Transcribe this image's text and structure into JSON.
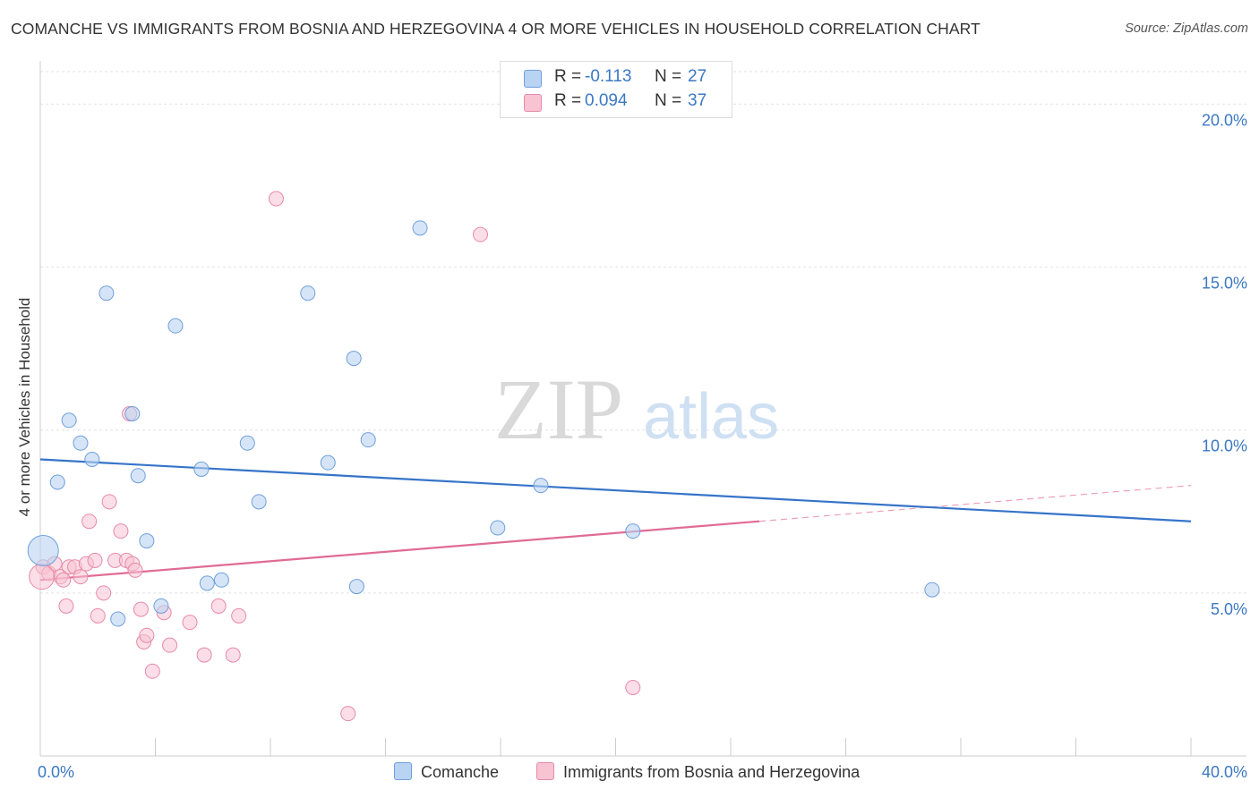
{
  "title": "COMANCHE VS IMMIGRANTS FROM BOSNIA AND HERZEGOVINA 4 OR MORE VEHICLES IN HOUSEHOLD CORRELATION CHART",
  "source": "Source: ZipAtlas.com",
  "watermark": {
    "zip": "ZIP",
    "atlas": "atlas"
  },
  "legend": {
    "series1": {
      "r_label": "R = ",
      "r_value": "-0.113",
      "n_label": "N = ",
      "n_value": "27"
    },
    "series2": {
      "r_label": "R = ",
      "r_value": "0.094",
      "n_label": "N = ",
      "n_value": "37"
    }
  },
  "chart_data": {
    "type": "scatter",
    "title": "COMANCHE VS IMMIGRANTS FROM BOSNIA AND HERZEGOVINA 4 OR MORE VEHICLES IN HOUSEHOLD CORRELATION CHART",
    "xlabel": "",
    "ylabel": "4 or more Vehicles in Household",
    "xlim": [
      0,
      40
    ],
    "ylim": [
      0,
      21
    ],
    "x_tick_labels": [
      {
        "value": 0,
        "label": "0.0%"
      },
      {
        "value": 40,
        "label": "40.0%"
      }
    ],
    "y_tick_labels": [
      {
        "value": 5,
        "label": "5.0%"
      },
      {
        "value": 10,
        "label": "10.0%"
      },
      {
        "value": 15,
        "label": "15.0%"
      },
      {
        "value": 20,
        "label": "20.0%"
      }
    ],
    "x_minor_ticks": [
      0,
      4,
      8,
      12,
      16,
      20,
      24,
      28,
      32,
      36,
      40
    ],
    "grid": true,
    "colors": {
      "series1_fill": "#b9d3f2",
      "series1_stroke": "#6f9fdc",
      "series1_line": "#3674c9",
      "series2_fill": "#f8c3d3",
      "series2_stroke": "#e88aa8",
      "series2_line": "#e06b95",
      "axis_label": "#3b78c3",
      "grid": "#e2e2e2"
    },
    "series": [
      {
        "name": "Comanche",
        "points": [
          [
            0.1,
            6.3
          ],
          [
            0.6,
            8.4
          ],
          [
            1.0,
            10.3
          ],
          [
            1.4,
            9.6
          ],
          [
            1.8,
            9.1
          ],
          [
            2.3,
            14.2
          ],
          [
            2.7,
            4.2
          ],
          [
            3.2,
            10.5
          ],
          [
            3.4,
            8.6
          ],
          [
            3.7,
            6.6
          ],
          [
            4.2,
            4.6
          ],
          [
            4.7,
            13.2
          ],
          [
            5.6,
            8.8
          ],
          [
            5.8,
            5.3
          ],
          [
            6.3,
            5.4
          ],
          [
            7.2,
            9.6
          ],
          [
            7.6,
            7.8
          ],
          [
            9.3,
            14.2
          ],
          [
            10.0,
            9.0
          ],
          [
            10.9,
            12.2
          ],
          [
            11.0,
            5.2
          ],
          [
            11.4,
            9.7
          ],
          [
            13.2,
            16.2
          ],
          [
            15.9,
            7.0
          ],
          [
            17.4,
            8.3
          ],
          [
            20.6,
            6.9
          ],
          [
            31.0,
            5.1
          ]
        ],
        "trend": {
          "x": [
            0,
            40
          ],
          "y": [
            9.1,
            7.2
          ]
        }
      },
      {
        "name": "Immigrants from Bosnia and Herzegovina",
        "points": [
          [
            0.1,
            5.8
          ],
          [
            0.3,
            5.6
          ],
          [
            0.5,
            5.9
          ],
          [
            0.7,
            5.5
          ],
          [
            0.8,
            5.4
          ],
          [
            0.9,
            4.6
          ],
          [
            1.0,
            5.8
          ],
          [
            1.2,
            5.8
          ],
          [
            1.4,
            5.5
          ],
          [
            1.6,
            5.9
          ],
          [
            1.7,
            7.2
          ],
          [
            1.9,
            6.0
          ],
          [
            2.0,
            4.3
          ],
          [
            2.2,
            5.0
          ],
          [
            2.4,
            7.8
          ],
          [
            2.6,
            6.0
          ],
          [
            2.8,
            6.9
          ],
          [
            3.0,
            6.0
          ],
          [
            3.1,
            10.5
          ],
          [
            3.2,
            5.9
          ],
          [
            3.3,
            5.7
          ],
          [
            3.5,
            4.5
          ],
          [
            3.6,
            3.5
          ],
          [
            3.7,
            3.7
          ],
          [
            3.9,
            2.6
          ],
          [
            4.3,
            4.4
          ],
          [
            4.5,
            3.4
          ],
          [
            5.2,
            4.1
          ],
          [
            5.7,
            3.1
          ],
          [
            6.2,
            4.6
          ],
          [
            6.7,
            3.1
          ],
          [
            6.9,
            4.3
          ],
          [
            8.2,
            17.1
          ],
          [
            10.7,
            1.3
          ],
          [
            15.3,
            16.0
          ],
          [
            20.6,
            2.1
          ],
          [
            0.05,
            5.5
          ]
        ],
        "trend": {
          "x": [
            0,
            25
          ],
          "y": [
            5.4,
            7.2
          ]
        },
        "trend_extension": {
          "x": [
            25,
            40
          ],
          "y": [
            7.2,
            8.3
          ]
        }
      }
    ]
  }
}
